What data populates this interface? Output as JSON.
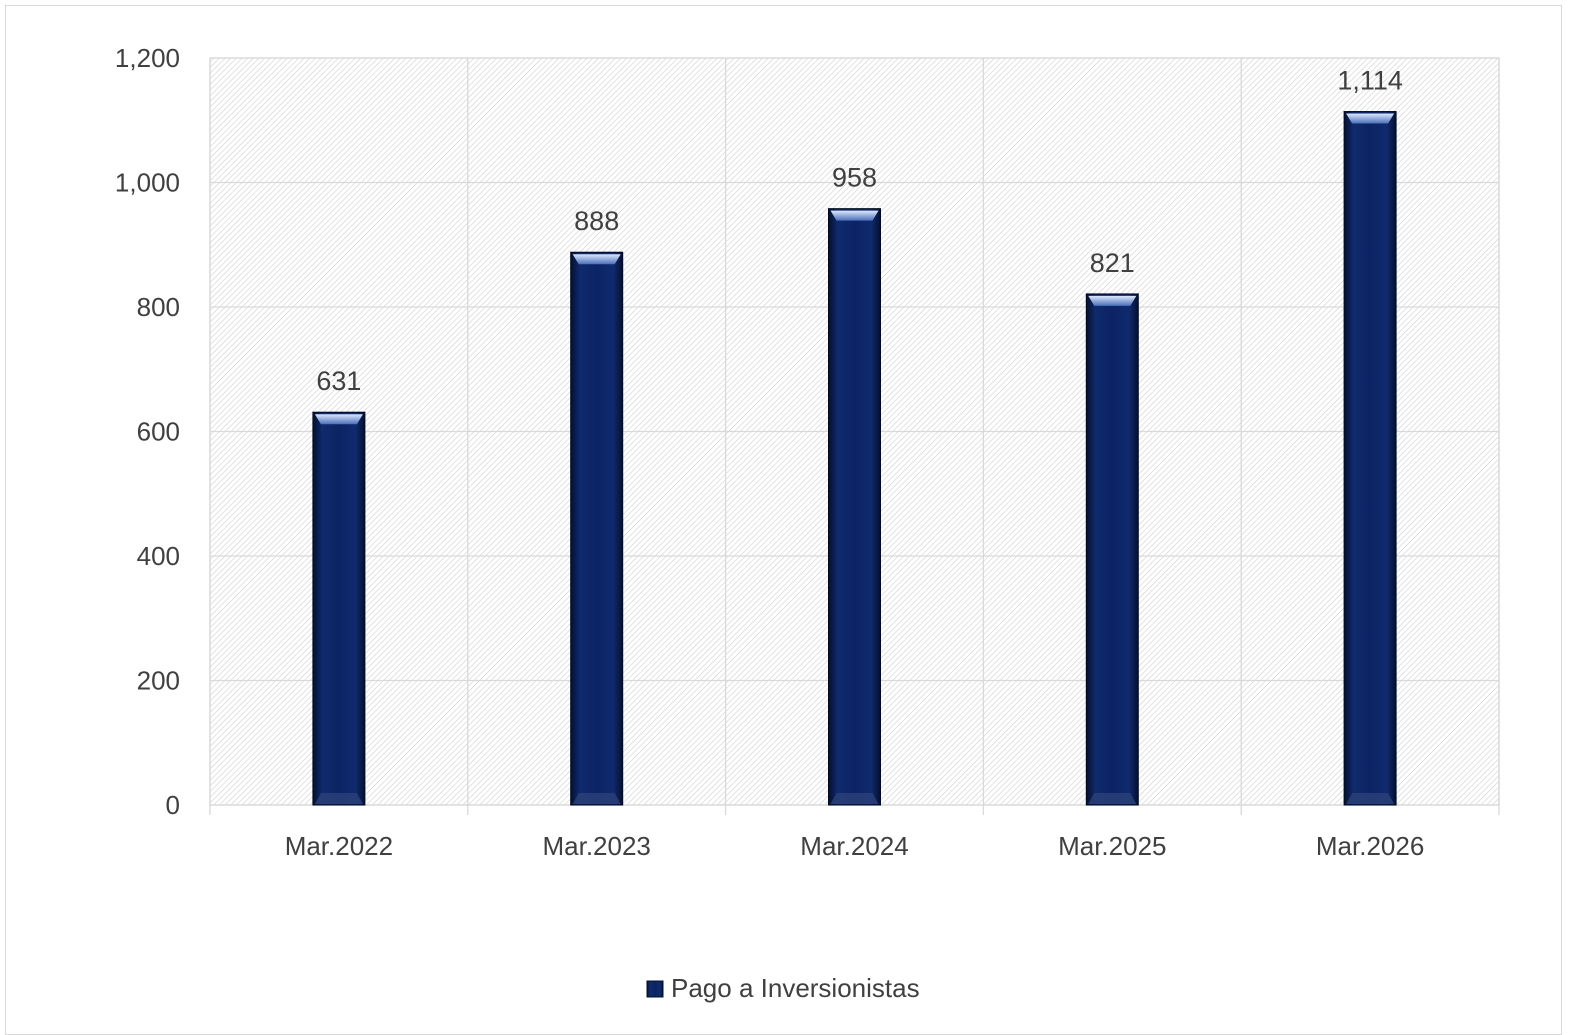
{
  "chart_data": {
    "type": "bar",
    "categories": [
      "Mar.2022",
      "Mar.2023",
      "Mar.2024",
      "Mar.2025",
      "Mar.2026"
    ],
    "series": [
      {
        "name": "Pago a Inversionistas",
        "values": [
          631,
          888,
          958,
          821,
          1114
        ],
        "data_labels": [
          "631",
          "888",
          "958",
          "821",
          "1,114"
        ]
      }
    ],
    "y_ticks": [
      "0",
      "200",
      "400",
      "600",
      "800",
      "1,000",
      "1,200"
    ],
    "ylim": [
      0,
      1200
    ],
    "grid": true,
    "legend": "bottom-center",
    "colors": {
      "bar": "#0d2466",
      "bar_dark": "#051540",
      "bar_light": "#1c3a8c",
      "grid": "#d9d9d9",
      "text": "#404040"
    }
  }
}
